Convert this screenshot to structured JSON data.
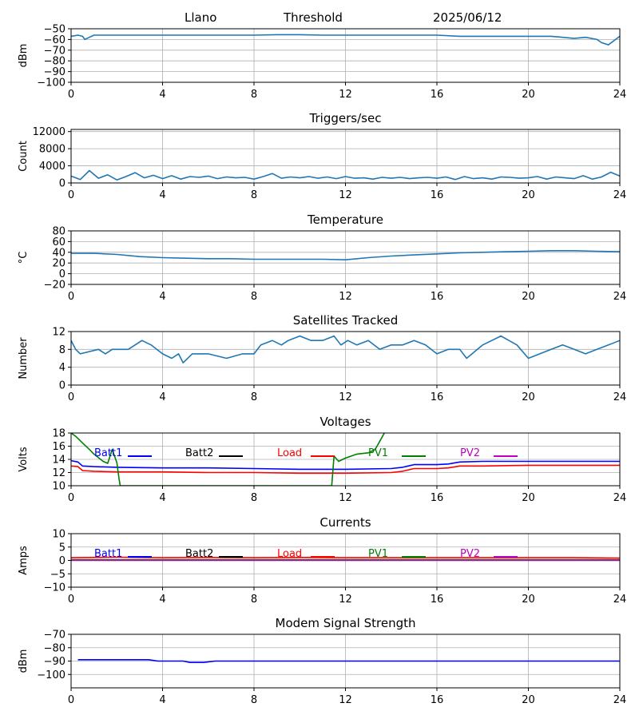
{
  "header": {
    "site": "Llano",
    "kind": "Threshold",
    "date": "2025/06/12"
  },
  "colors": {
    "default": "#1f77b4",
    "Batt1": "#0000ff",
    "Batt2": "#000000",
    "Load": "#ff0000",
    "PV1": "#008000",
    "PV2": "#bf00bf"
  },
  "chart_data": [
    {
      "id": "threshold",
      "type": "line",
      "title": "",
      "ylabel": "dBm",
      "xlim": [
        0,
        24
      ],
      "ylim": [
        -100,
        -50
      ],
      "xticks": [
        "0",
        "4",
        "8",
        "12",
        "16",
        "20",
        "24"
      ],
      "yticks": [
        "−50",
        "−60",
        "−70",
        "−80",
        "−90",
        "−100"
      ],
      "series": [
        {
          "x": [
            0,
            0.3,
            0.5,
            0.6,
            0.8,
            1,
            2,
            4,
            6,
            8,
            9,
            10,
            11,
            12,
            14,
            16,
            17,
            18,
            19,
            20,
            21,
            21.5,
            22,
            22.5,
            23,
            23.2,
            23.5,
            24
          ],
          "y": [
            -57,
            -56,
            -57,
            -60,
            -58,
            -56,
            -56,
            -56,
            -56,
            -56,
            -55.5,
            -55.5,
            -56,
            -56,
            -56,
            -56,
            -57,
            -57,
            -57,
            -57,
            -57,
            -58,
            -59,
            -58,
            -60,
            -63,
            -65,
            -57
          ]
        }
      ]
    },
    {
      "id": "triggers",
      "type": "line",
      "title": "Triggers/sec",
      "ylabel": "Count",
      "xlim": [
        0,
        24
      ],
      "ylim": [
        0,
        12500
      ],
      "xticks": [
        "0",
        "4",
        "8",
        "12",
        "16",
        "20",
        "24"
      ],
      "yticks": [
        "0",
        "4000",
        "8000",
        "12000"
      ],
      "series": [
        {
          "x": [
            0,
            0.4,
            0.8,
            1.2,
            1.6,
            2,
            2.4,
            2.8,
            3.2,
            3.6,
            4,
            4.4,
            4.8,
            5.2,
            5.6,
            6,
            6.4,
            6.8,
            7.2,
            7.6,
            8,
            8.4,
            8.8,
            9.2,
            9.6,
            10,
            10.4,
            10.8,
            11.2,
            11.6,
            12,
            12.4,
            12.8,
            13.2,
            13.6,
            14,
            14.4,
            14.8,
            15.2,
            15.6,
            16,
            16.4,
            16.8,
            17.2,
            17.6,
            18,
            18.4,
            18.8,
            19.2,
            19.6,
            20,
            20.4,
            20.8,
            21.2,
            21.6,
            22,
            22.4,
            22.8,
            23.2,
            23.6,
            24
          ],
          "y": [
            1600,
            800,
            2900,
            1100,
            1900,
            700,
            1500,
            2400,
            1200,
            1800,
            1000,
            1700,
            900,
            1500,
            1300,
            1600,
            1000,
            1400,
            1200,
            1300,
            900,
            1500,
            2200,
            1100,
            1400,
            1200,
            1500,
            1100,
            1400,
            1000,
            1500,
            1100,
            1200,
            900,
            1300,
            1100,
            1300,
            1000,
            1200,
            1300,
            1100,
            1400,
            800,
            1500,
            1000,
            1200,
            900,
            1400,
            1300,
            1100,
            1200,
            1500,
            900,
            1400,
            1200,
            1000,
            1700,
            900,
            1400,
            2500,
            1600
          ]
        }
      ]
    },
    {
      "id": "temperature",
      "type": "line",
      "title": "Temperature",
      "ylabel": "°C",
      "xlim": [
        0,
        24
      ],
      "ylim": [
        -20,
        80
      ],
      "xticks": [
        "0",
        "4",
        "8",
        "12",
        "16",
        "20",
        "24"
      ],
      "yticks": [
        "−20",
        "0",
        "20",
        "40",
        "60",
        "80"
      ],
      "series": [
        {
          "x": [
            0,
            1,
            2,
            3,
            4,
            5,
            6,
            7,
            8,
            9,
            10,
            11,
            12,
            13,
            14,
            15,
            16,
            17,
            18,
            19,
            20,
            21,
            22,
            23,
            24
          ],
          "y": [
            38,
            38,
            36,
            32,
            30,
            29,
            28,
            28,
            27,
            27,
            27,
            27,
            26,
            30,
            33,
            35,
            37,
            39,
            40,
            41,
            42,
            43,
            43,
            42,
            41
          ]
        }
      ]
    },
    {
      "id": "satellites",
      "type": "line",
      "title": "Satellites Tracked",
      "ylabel": "Number",
      "xlim": [
        0,
        24
      ],
      "ylim": [
        0,
        12
      ],
      "xticks": [
        "0",
        "4",
        "8",
        "12",
        "16",
        "20",
        "24"
      ],
      "yticks": [
        "0",
        "4",
        "8",
        "12"
      ],
      "series": [
        {
          "x": [
            0,
            0.2,
            0.4,
            1.2,
            1.5,
            1.8,
            2.5,
            2.8,
            3.1,
            3.5,
            4,
            4.4,
            4.7,
            4.9,
            5.3,
            6,
            6.8,
            7.5,
            8,
            8.3,
            8.8,
            9.2,
            9.5,
            10,
            10.5,
            11,
            11.5,
            11.8,
            12.1,
            12.5,
            13,
            13.5,
            14,
            14.5,
            15,
            15.5,
            16,
            16.5,
            17,
            17.3,
            18,
            18.8,
            19.5,
            20,
            20.5,
            21,
            21.5,
            22,
            22.5,
            23,
            23.5,
            24
          ],
          "y": [
            10,
            8,
            7,
            8,
            7,
            8,
            8,
            9,
            10,
            9,
            7,
            6,
            7,
            5,
            7,
            7,
            6,
            7,
            7,
            9,
            10,
            9,
            10,
            11,
            10,
            10,
            11,
            9,
            10,
            9,
            10,
            8,
            9,
            9,
            10,
            9,
            7,
            8,
            8,
            6,
            9,
            11,
            9,
            6,
            7,
            8,
            9,
            8,
            7,
            8,
            9,
            10
          ]
        }
      ]
    },
    {
      "id": "voltages",
      "type": "line",
      "title": "Voltages",
      "ylabel": "Volts",
      "xlim": [
        0,
        24
      ],
      "ylim": [
        10,
        18
      ],
      "xticks": [
        "0",
        "4",
        "8",
        "12",
        "16",
        "20",
        "24"
      ],
      "yticks": [
        "10",
        "12",
        "14",
        "16",
        "18"
      ],
      "series": [
        {
          "name": "Batt1",
          "x": [
            0,
            0.3,
            0.5,
            1,
            2,
            4,
            6,
            8,
            10,
            12,
            14,
            14.5,
            15,
            16,
            16.5,
            17,
            18,
            20,
            22,
            24
          ],
          "y": [
            13.8,
            13.6,
            13.0,
            12.9,
            12.8,
            12.7,
            12.7,
            12.6,
            12.5,
            12.5,
            12.6,
            12.8,
            13.2,
            13.2,
            13.3,
            13.6,
            13.7,
            13.7,
            13.7,
            13.7
          ]
        },
        {
          "name": "Batt2",
          "x": [],
          "y": []
        },
        {
          "name": "Load",
          "x": [
            0,
            0.3,
            0.5,
            1,
            2,
            4,
            6,
            8,
            10,
            12,
            14,
            14.5,
            15,
            16,
            16.5,
            17,
            18,
            20,
            22,
            24
          ],
          "y": [
            13.0,
            12.9,
            12.3,
            12.2,
            12.1,
            12.1,
            12.0,
            12.0,
            11.9,
            11.9,
            12.0,
            12.2,
            12.6,
            12.6,
            12.7,
            13.0,
            13.0,
            13.1,
            13.1,
            13.1
          ]
        },
        {
          "name": "PV1",
          "x": [
            0,
            0.2,
            0.5,
            0.8,
            1,
            1.4,
            1.6,
            1.8,
            2,
            2.1,
            2.15,
            11.4,
            11.5,
            11.7,
            12,
            12.5,
            13,
            13.3,
            13.7
          ],
          "y": [
            18,
            17.5,
            16.5,
            15.5,
            14.8,
            13.7,
            13.4,
            15.5,
            13.5,
            11,
            10,
            10,
            14.5,
            13.7,
            14.2,
            14.8,
            15.0,
            15.5,
            18
          ]
        },
        {
          "name": "PV2",
          "x": [],
          "y": []
        }
      ]
    },
    {
      "id": "currents",
      "type": "line",
      "title": "Currents",
      "ylabel": "Amps",
      "xlim": [
        0,
        24
      ],
      "ylim": [
        -10,
        10
      ],
      "xticks": [
        "0",
        "4",
        "8",
        "12",
        "16",
        "20",
        "24"
      ],
      "yticks": [
        "−10",
        "−5",
        "0",
        "5",
        "10"
      ],
      "series": [
        {
          "name": "Batt1",
          "x": [
            0,
            24
          ],
          "y": [
            0.1,
            0.1
          ]
        },
        {
          "name": "Batt2",
          "x": [],
          "y": []
        },
        {
          "name": "Load",
          "x": [
            0,
            2,
            4,
            6,
            8,
            10,
            12,
            14,
            16,
            18,
            20,
            22,
            24
          ],
          "y": [
            1.0,
            1.2,
            1.0,
            1.1,
            1.0,
            1.1,
            1.0,
            1.0,
            1.0,
            1.0,
            1.0,
            1.0,
            0.9
          ]
        },
        {
          "name": "PV1",
          "x": [
            0,
            24
          ],
          "y": [
            0.3,
            0.3
          ]
        },
        {
          "name": "PV2",
          "x": [
            0,
            24
          ],
          "y": [
            0.0,
            0.0
          ]
        }
      ]
    },
    {
      "id": "modem",
      "type": "line",
      "title": "Modem Signal Strength",
      "ylabel": "dBm",
      "xlim": [
        0,
        24
      ],
      "ylim": [
        -110,
        -70
      ],
      "xticks": [
        "0",
        "4",
        "8",
        "12",
        "16",
        "20",
        "24"
      ],
      "yticks": [
        "−70",
        "−80",
        "−90",
        "−100"
      ],
      "series": [
        {
          "name": "",
          "x": [
            0.3,
            3.4,
            3.8,
            4.9,
            5.2,
            5.8,
            6.3,
            24
          ],
          "y": [
            -89,
            -89,
            -90,
            -90,
            -91,
            -91,
            -90,
            -90
          ]
        }
      ]
    }
  ]
}
